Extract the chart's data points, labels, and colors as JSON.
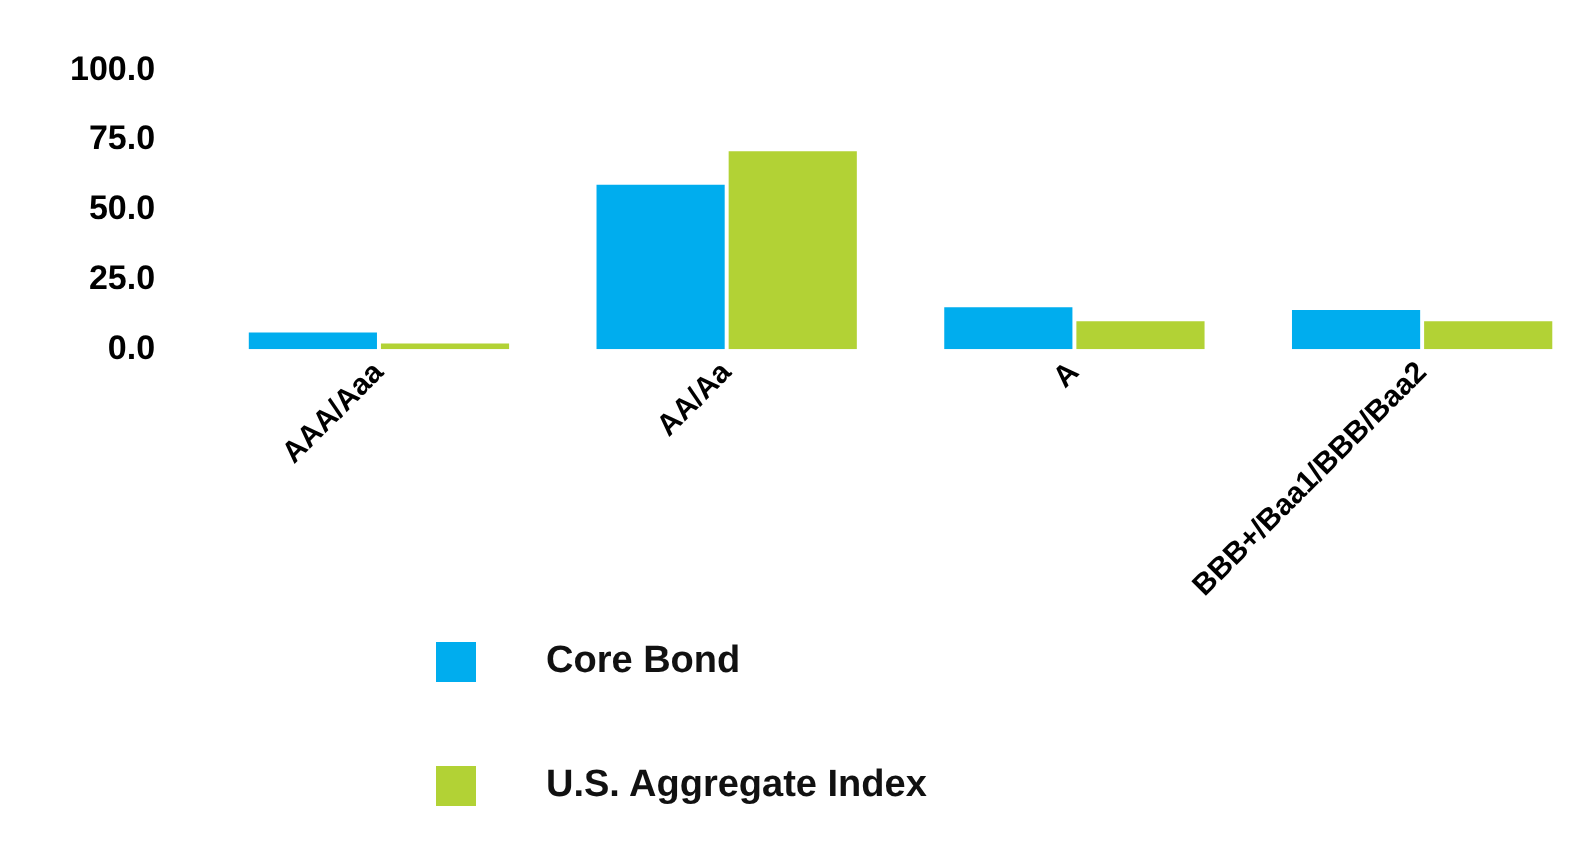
{
  "chart_data": {
    "type": "bar",
    "categories": [
      "AAA/Aaa",
      "AA/Aa",
      "A",
      "BBB+/Baa1/BBB/Baa2"
    ],
    "series": [
      {
        "name": "Core Bond",
        "color": "#00adee",
        "values": [
          6,
          59,
          15,
          14
        ]
      },
      {
        "name": "U.S. Aggregate Index",
        "color": "#b2d235",
        "values": [
          2,
          71,
          10,
          10
        ]
      }
    ],
    "ylim": [
      0,
      100
    ],
    "yticks": [
      {
        "value": 0,
        "label": "0.0"
      },
      {
        "value": 25,
        "label": "25.0"
      },
      {
        "value": 50,
        "label": "50.0"
      },
      {
        "value": 75,
        "label": "75.0"
      },
      {
        "value": 100,
        "label": "100.0"
      }
    ],
    "grid": false,
    "legend": "bottom"
  }
}
